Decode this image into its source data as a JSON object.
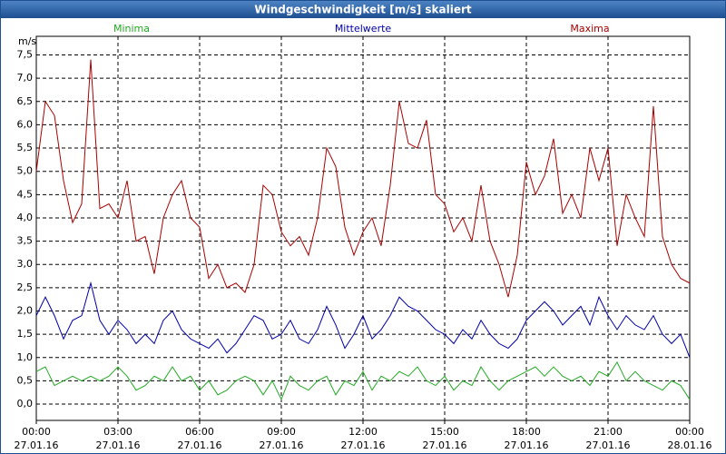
{
  "chart_data": {
    "type": "line",
    "title": "Windgeschwindigkeit [m/s] skaliert",
    "y_label": "m/s",
    "grid": true,
    "xlim": [
      0,
      1440
    ],
    "xticks": [
      {
        "value": 0,
        "label": "00:00"
      },
      {
        "value": 180,
        "label": "03:00"
      },
      {
        "value": 360,
        "label": "06:00"
      },
      {
        "value": 540,
        "label": "09:00"
      },
      {
        "value": 720,
        "label": "12:00"
      },
      {
        "value": 900,
        "label": "15:00"
      },
      {
        "value": 1080,
        "label": "18:00"
      },
      {
        "value": 1260,
        "label": "21:00"
      },
      {
        "value": 1440,
        "label": "00:00"
      }
    ],
    "xtick_dates": [
      "27.01.16",
      "27.01.16",
      "27.01.16",
      "27.01.16",
      "27.01.16",
      "27.01.16",
      "27.01.16",
      "27.01.16",
      "28.01.16"
    ],
    "ylim": [
      -0.35,
      7.9
    ],
    "yticks": [
      {
        "value": 0,
        "label": "0,0"
      },
      {
        "value": 0.5,
        "label": "0,5"
      },
      {
        "value": 1,
        "label": "1,0"
      },
      {
        "value": 1.5,
        "label": "1,5"
      },
      {
        "value": 2,
        "label": "2,0"
      },
      {
        "value": 2.5,
        "label": "2,5"
      },
      {
        "value": 3,
        "label": "3,0"
      },
      {
        "value": 3.5,
        "label": "3,5"
      },
      {
        "value": 4,
        "label": "4,0"
      },
      {
        "value": 4.5,
        "label": "4,5"
      },
      {
        "value": 5,
        "label": "5,0"
      },
      {
        "value": 5.5,
        "label": "5,5"
      },
      {
        "value": 6,
        "label": "6,0"
      },
      {
        "value": 6.5,
        "label": "6,5"
      },
      {
        "value": 7,
        "label": "7,0"
      },
      {
        "value": 7.5,
        "label": "7,5"
      }
    ],
    "x": [
      0,
      20,
      40,
      60,
      80,
      100,
      120,
      140,
      160,
      180,
      200,
      220,
      240,
      260,
      280,
      300,
      320,
      340,
      360,
      380,
      400,
      420,
      440,
      460,
      480,
      500,
      520,
      540,
      560,
      580,
      600,
      620,
      640,
      660,
      680,
      700,
      720,
      740,
      760,
      780,
      800,
      820,
      840,
      860,
      880,
      900,
      920,
      940,
      960,
      980,
      1000,
      1020,
      1040,
      1060,
      1080,
      1100,
      1120,
      1140,
      1160,
      1180,
      1200,
      1220,
      1240,
      1260,
      1280,
      1300,
      1320,
      1340,
      1360,
      1380,
      1400,
      1420,
      1440
    ],
    "series": [
      {
        "name": "Minima",
        "color": "#22aa22",
        "values": [
          0.7,
          0.8,
          0.4,
          0.5,
          0.6,
          0.5,
          0.6,
          0.5,
          0.6,
          0.8,
          0.6,
          0.3,
          0.4,
          0.6,
          0.5,
          0.8,
          0.5,
          0.6,
          0.3,
          0.5,
          0.2,
          0.3,
          0.5,
          0.6,
          0.5,
          0.2,
          0.5,
          0.1,
          0.6,
          0.4,
          0.3,
          0.5,
          0.6,
          0.2,
          0.5,
          0.4,
          0.7,
          0.3,
          0.6,
          0.5,
          0.7,
          0.6,
          0.8,
          0.5,
          0.4,
          0.6,
          0.3,
          0.5,
          0.4,
          0.8,
          0.5,
          0.3,
          0.5,
          0.6,
          0.7,
          0.8,
          0.6,
          0.8,
          0.6,
          0.5,
          0.6,
          0.4,
          0.7,
          0.6,
          0.9,
          0.5,
          0.7,
          0.5,
          0.4,
          0.3,
          0.5,
          0.4,
          0.1
        ]
      },
      {
        "name": "Mittelwerte",
        "color": "#0000aa",
        "values": [
          1.9,
          2.3,
          1.9,
          1.4,
          1.8,
          1.9,
          2.6,
          1.8,
          1.5,
          1.8,
          1.6,
          1.3,
          1.5,
          1.3,
          1.8,
          2.0,
          1.6,
          1.4,
          1.3,
          1.2,
          1.4,
          1.1,
          1.3,
          1.6,
          1.9,
          1.8,
          1.4,
          1.5,
          1.8,
          1.4,
          1.3,
          1.6,
          2.1,
          1.7,
          1.2,
          1.5,
          1.9,
          1.4,
          1.6,
          1.9,
          2.3,
          2.1,
          2.0,
          1.8,
          1.6,
          1.5,
          1.3,
          1.6,
          1.4,
          1.8,
          1.5,
          1.3,
          1.2,
          1.4,
          1.8,
          2.0,
          2.2,
          2.0,
          1.7,
          1.9,
          2.1,
          1.7,
          2.3,
          1.9,
          1.6,
          1.9,
          1.7,
          1.6,
          1.9,
          1.5,
          1.3,
          1.5,
          1.0
        ]
      },
      {
        "name": "Maxima",
        "color": "#aa0000",
        "values": [
          5.0,
          6.5,
          6.2,
          4.8,
          3.9,
          4.3,
          7.4,
          4.2,
          4.3,
          4.0,
          4.8,
          3.5,
          3.6,
          2.8,
          4.0,
          4.5,
          4.8,
          4.0,
          3.8,
          2.7,
          3.0,
          2.5,
          2.6,
          2.4,
          3.0,
          4.7,
          4.5,
          3.7,
          3.4,
          3.6,
          3.2,
          4.0,
          5.5,
          5.1,
          3.8,
          3.2,
          3.7,
          4.0,
          3.4,
          4.7,
          6.5,
          5.6,
          5.5,
          6.1,
          4.5,
          4.3,
          3.7,
          4.0,
          3.5,
          4.7,
          3.5,
          3.0,
          2.3,
          3.2,
          5.2,
          4.5,
          4.9,
          5.7,
          4.1,
          4.5,
          4.0,
          5.5,
          4.8,
          5.5,
          3.4,
          4.5,
          4.0,
          3.6,
          6.4,
          3.6,
          3.0,
          2.7,
          2.6
        ]
      }
    ]
  }
}
